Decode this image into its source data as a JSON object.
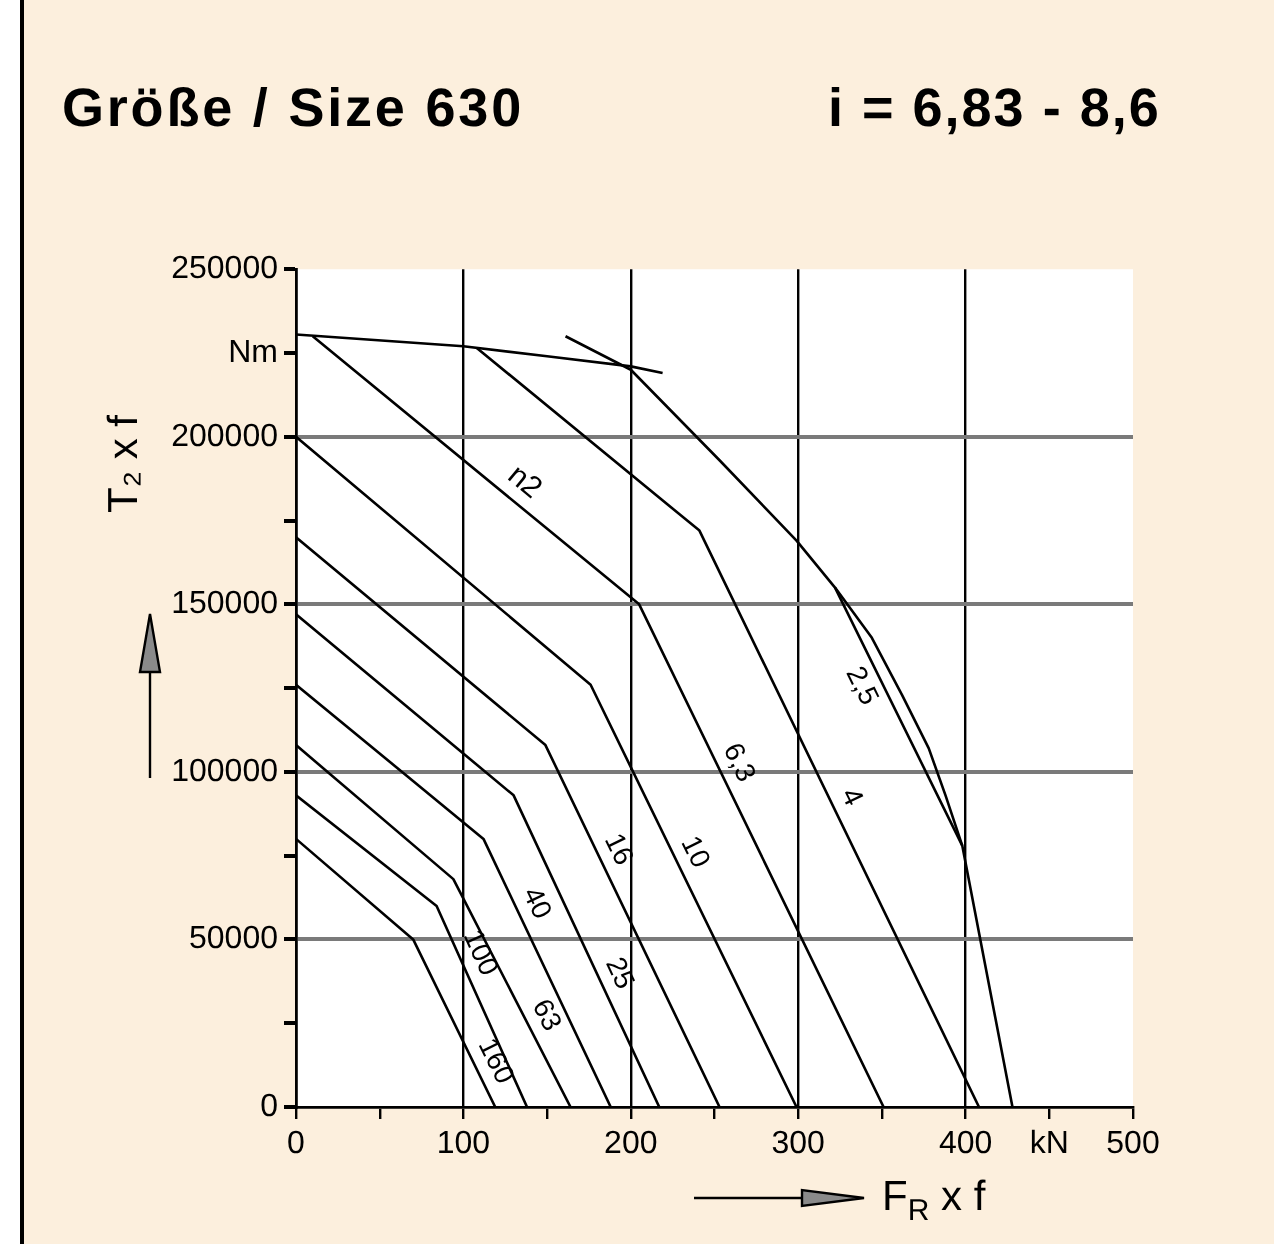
{
  "chart_data": {
    "type": "line",
    "title": "Größe / Size 630",
    "subtitle": "i = 6,83 - 8,6",
    "xlabel": "F$_{R}$ x f",
    "ylabel": "T₂ x f",
    "annotations": [
      {
        "text": "n2",
        "x": 128,
        "y": 181000
      }
    ],
    "xlim": [
      0,
      500
    ],
    "xticks": [
      0,
      {
        "value": 50,
        "label": null
      },
      100,
      {
        "value": 150,
        "label": null
      },
      200,
      {
        "value": 250,
        "label": null
      },
      300,
      {
        "value": 350,
        "label": null
      },
      400,
      {
        "value": 450,
        "label": "kN"
      },
      500
    ],
    "ylim": [
      0,
      250000
    ],
    "yticks": [
      0,
      {
        "value": 25000,
        "label": null
      },
      50000,
      {
        "value": 75000,
        "label": null
      },
      100000,
      {
        "value": 125000,
        "label": null
      },
      150000,
      {
        "value": 175000,
        "label": null
      },
      200000,
      {
        "value": 225000,
        "label": "Nm"
      },
      250000
    ],
    "grid": true,
    "series": [
      {
        "color": "#000000",
        "x": [
          0,
          100,
          150,
          200,
          219
        ],
        "values": [
          230500,
          227000,
          224000,
          221000,
          219000
        ]
      },
      {
        "name": "2,5",
        "color": "#000000",
        "x": [
          161,
          200,
          253,
          299,
          322,
          398,
          428
        ],
        "values": [
          230000,
          220000,
          193000,
          169000,
          155000,
          78000,
          0
        ]
      },
      {
        "color": "#000000",
        "x": [
          322,
          344,
          362,
          378,
          388,
          398
        ],
        "values": [
          155000,
          140000,
          123000,
          107000,
          93000,
          78000
        ]
      },
      {
        "name": "4",
        "color": "#000000",
        "x": [
          108,
          241,
          408
        ],
        "values": [
          226500,
          172000,
          0
        ]
      },
      {
        "name": "6,3",
        "color": "#000000",
        "x": [
          10,
          205,
          351
        ],
        "values": [
          230000,
          150000,
          0
        ]
      },
      {
        "name": "10",
        "color": "#000000",
        "x": [
          0,
          176,
          299
        ],
        "values": [
          200000,
          126000,
          0
        ]
      },
      {
        "name": "16",
        "color": "#000000",
        "x": [
          0,
          149,
          253
        ],
        "values": [
          170000,
          108000,
          0
        ]
      },
      {
        "name": "25",
        "color": "#000000",
        "x": [
          0,
          130,
          217
        ],
        "values": [
          147000,
          93000,
          0
        ]
      },
      {
        "name": "40",
        "color": "#000000",
        "x": [
          0,
          112,
          188
        ],
        "values": [
          126000,
          80000,
          0
        ]
      },
      {
        "name": "63",
        "color": "#000000",
        "x": [
          0,
          94,
          164
        ],
        "values": [
          108000,
          68000,
          0
        ]
      },
      {
        "name": "100",
        "color": "#000000",
        "x": [
          0,
          84,
          138
        ],
        "values": [
          93000,
          60000,
          0
        ]
      },
      {
        "name": "160",
        "color": "#000000",
        "x": [
          0,
          70,
          119
        ],
        "values": [
          80000,
          50000,
          0
        ]
      }
    ]
  }
}
